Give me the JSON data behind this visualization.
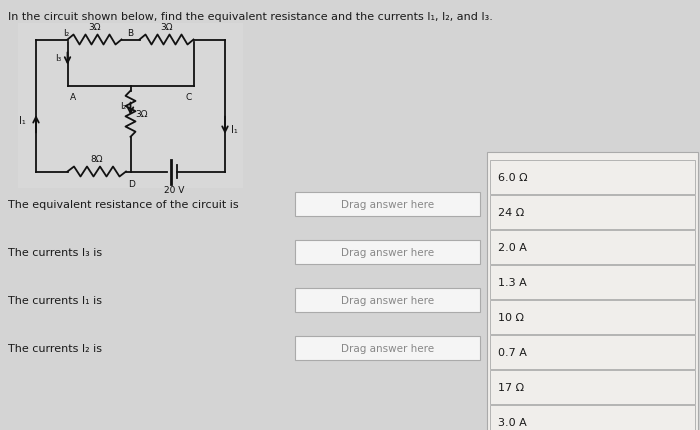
{
  "title": "In the circuit shown below, find the equivalent resistance and the currents I₁, I₂, and I₃.",
  "bg_color": "#d4d4d4",
  "circuit_bg": "#e0e0e0",
  "questions": [
    "The equivalent resistance of the circuit is",
    "The currents I₃ is",
    "The currents I₁ is",
    "The currents I₂ is"
  ],
  "drag_label": "Drag answer here",
  "answer_options": [
    "6.0 Ω",
    "24 Ω",
    "2.0 A",
    "1.3 A",
    "10 Ω",
    "0.7 A",
    "17 Ω",
    "3.0 A"
  ],
  "box_color": "#f0eeeb",
  "box_border": "#aaaaaa",
  "drag_box_color": "#f5f5f5",
  "text_color": "#1a1a1a",
  "drag_text_color": "#888888",
  "circuit_wire_color": "#111111"
}
